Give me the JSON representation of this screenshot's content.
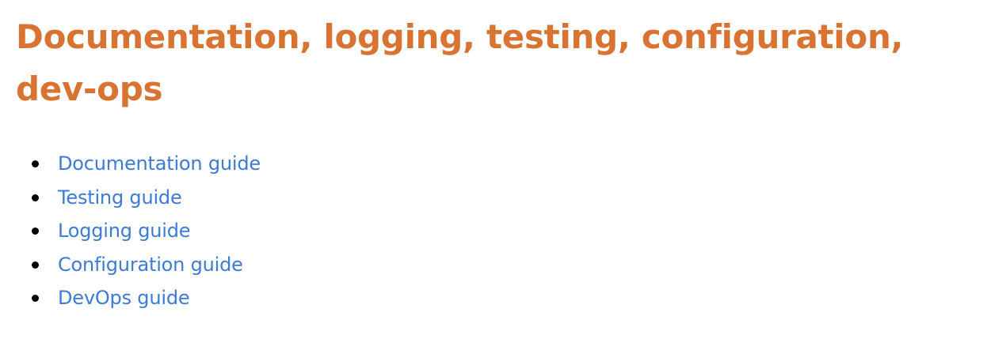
{
  "page": {
    "title_line_1": "Documentation, logging, testing, configuration,",
    "title_line_2": "dev-ops"
  },
  "links": [
    {
      "label": "Documentation guide"
    },
    {
      "label": "Testing guide"
    },
    {
      "label": "Logging guide"
    },
    {
      "label": "Configuration guide"
    },
    {
      "label": "DevOps guide"
    }
  ],
  "colors": {
    "heading": "#d97332",
    "link": "#3b7bd6",
    "bullet": "#000000",
    "background": "#ffffff"
  }
}
